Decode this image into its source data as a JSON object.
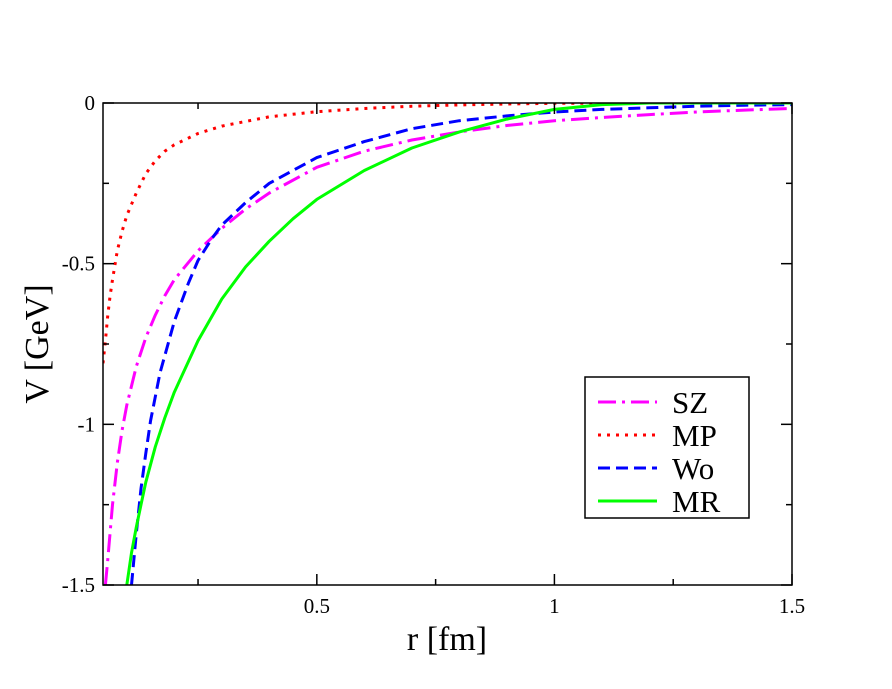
{
  "chart_data": {
    "type": "line",
    "title": "",
    "xlabel": "r [fm]",
    "ylabel": "V [GeV]",
    "xlim": [
      0.05,
      1.5
    ],
    "ylim": [
      -1.5,
      0
    ],
    "x_ticks": [
      0.5,
      1,
      1.5
    ],
    "x_tick_labels": [
      "0.5",
      "1",
      "1.5"
    ],
    "y_ticks": [
      0,
      -0.5,
      -1,
      -1.5
    ],
    "y_tick_labels": [
      "0",
      "-0.5",
      "-1",
      "-1.5"
    ],
    "grid": false,
    "legend_position": "bottom-right",
    "series": [
      {
        "name": "SZ",
        "color": "#ff00ff",
        "style": "dash-dot",
        "x": [
          0.055,
          0.06,
          0.07,
          0.08,
          0.09,
          0.1,
          0.12,
          0.14,
          0.16,
          0.18,
          0.2,
          0.25,
          0.3,
          0.35,
          0.4,
          0.5,
          0.6,
          0.7,
          0.8,
          0.9,
          1.0,
          1.1,
          1.2,
          1.3,
          1.4,
          1.5
        ],
        "y": [
          -1.5,
          -1.42,
          -1.25,
          -1.12,
          -1.02,
          -0.94,
          -0.82,
          -0.73,
          -0.66,
          -0.6,
          -0.55,
          -0.46,
          -0.39,
          -0.33,
          -0.28,
          -0.2,
          -0.15,
          -0.115,
          -0.09,
          -0.07,
          -0.055,
          -0.045,
          -0.036,
          -0.028,
          -0.022,
          -0.017
        ]
      },
      {
        "name": "MP",
        "color": "#ff0000",
        "style": "dotted",
        "x": [
          0.05,
          0.055,
          0.06,
          0.065,
          0.07,
          0.08,
          0.09,
          0.1,
          0.12,
          0.14,
          0.16,
          0.18,
          0.2,
          0.25,
          0.3,
          0.4,
          0.5,
          0.6,
          0.7,
          0.8,
          0.9,
          1.0,
          1.2,
          1.5
        ],
        "y": [
          -0.81,
          -0.74,
          -0.66,
          -0.6,
          -0.55,
          -0.46,
          -0.4,
          -0.35,
          -0.28,
          -0.22,
          -0.18,
          -0.15,
          -0.13,
          -0.095,
          -0.072,
          -0.043,
          -0.027,
          -0.017,
          -0.01,
          -0.006,
          -0.003,
          -0.001,
          0,
          0
        ]
      },
      {
        "name": "Wo",
        "color": "#0000ff",
        "style": "dashed",
        "x": [
          0.11,
          0.12,
          0.13,
          0.14,
          0.15,
          0.17,
          0.2,
          0.23,
          0.25,
          0.28,
          0.3,
          0.35,
          0.4,
          0.5,
          0.6,
          0.7,
          0.8,
          0.9,
          1.0,
          1.1,
          1.2,
          1.3,
          1.4,
          1.5
        ],
        "y": [
          -1.5,
          -1.34,
          -1.2,
          -1.09,
          -0.99,
          -0.84,
          -0.68,
          -0.56,
          -0.49,
          -0.42,
          -0.38,
          -0.31,
          -0.25,
          -0.17,
          -0.12,
          -0.08,
          -0.055,
          -0.04,
          -0.028,
          -0.02,
          -0.015,
          -0.01,
          -0.007,
          -0.005
        ]
      },
      {
        "name": "MR",
        "color": "#00ff00",
        "style": "solid",
        "x": [
          0.1,
          0.11,
          0.12,
          0.13,
          0.14,
          0.16,
          0.18,
          0.2,
          0.25,
          0.3,
          0.35,
          0.4,
          0.45,
          0.5,
          0.6,
          0.7,
          0.8,
          0.9,
          1.0,
          1.1,
          1.2,
          1.3,
          1.4,
          1.5
        ],
        "y": [
          -1.5,
          -1.4,
          -1.32,
          -1.25,
          -1.18,
          -1.07,
          -0.98,
          -0.9,
          -0.74,
          -0.61,
          -0.51,
          -0.43,
          -0.36,
          -0.3,
          -0.21,
          -0.14,
          -0.09,
          -0.05,
          -0.02,
          -0.005,
          0,
          0,
          0,
          0
        ]
      }
    ]
  }
}
